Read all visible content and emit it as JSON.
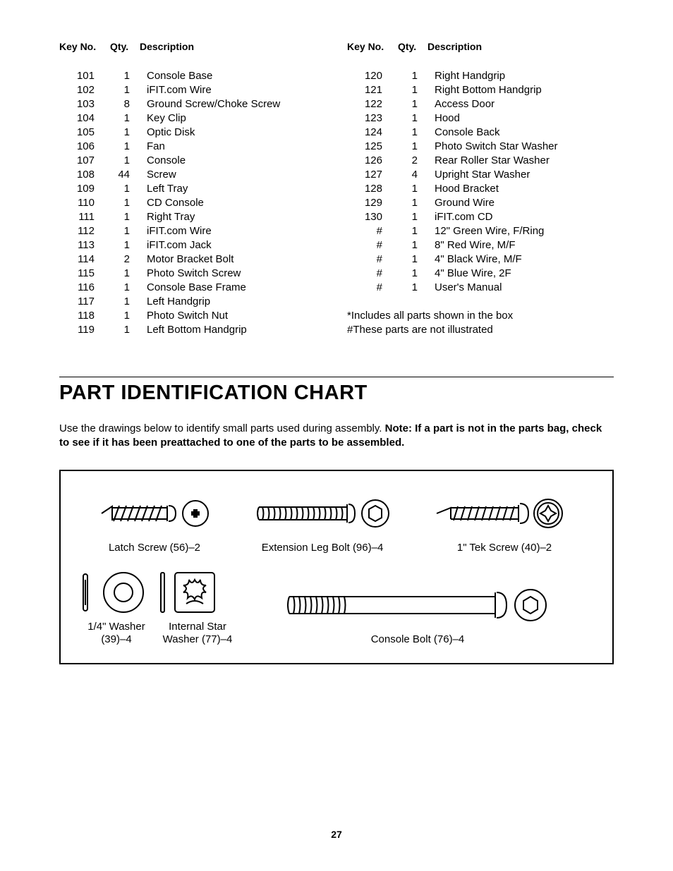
{
  "headers": {
    "key": "Key No.",
    "qty": "Qty.",
    "desc": "Description"
  },
  "left_parts": [
    {
      "key": "101",
      "qty": "1",
      "desc": "Console Base"
    },
    {
      "key": "102",
      "qty": "1",
      "desc": "iFIT.com Wire"
    },
    {
      "key": "103",
      "qty": "8",
      "desc": "Ground Screw/Choke Screw"
    },
    {
      "key": "104",
      "qty": "1",
      "desc": "Key Clip"
    },
    {
      "key": "105",
      "qty": "1",
      "desc": "Optic Disk"
    },
    {
      "key": "106",
      "qty": "1",
      "desc": "Fan"
    },
    {
      "key": "107",
      "qty": "1",
      "desc": "Console"
    },
    {
      "key": "108",
      "qty": "44",
      "desc": "Screw"
    },
    {
      "key": "109",
      "qty": "1",
      "desc": "Left Tray"
    },
    {
      "key": "110",
      "qty": "1",
      "desc": "CD Console"
    },
    {
      "key": "111",
      "qty": "1",
      "desc": "Right Tray"
    },
    {
      "key": "112",
      "qty": "1",
      "desc": "iFIT.com Wire"
    },
    {
      "key": "113",
      "qty": "1",
      "desc": "iFIT.com Jack"
    },
    {
      "key": "114",
      "qty": "2",
      "desc": "Motor Bracket Bolt"
    },
    {
      "key": "115",
      "qty": "1",
      "desc": "Photo Switch Screw"
    },
    {
      "key": "116",
      "qty": "1",
      "desc": "Console Base Frame"
    },
    {
      "key": "117",
      "qty": "1",
      "desc": "Left Handgrip"
    },
    {
      "key": "118",
      "qty": "1",
      "desc": "Photo Switch Nut"
    },
    {
      "key": "119",
      "qty": "1",
      "desc": "Left Bottom Handgrip"
    }
  ],
  "right_parts": [
    {
      "key": "120",
      "qty": "1",
      "desc": "Right Handgrip"
    },
    {
      "key": "121",
      "qty": "1",
      "desc": "Right Bottom Handgrip"
    },
    {
      "key": "122",
      "qty": "1",
      "desc": "Access Door"
    },
    {
      "key": "123",
      "qty": "1",
      "desc": "Hood"
    },
    {
      "key": "124",
      "qty": "1",
      "desc": "Console Back"
    },
    {
      "key": "125",
      "qty": "1",
      "desc": "Photo Switch Star Washer"
    },
    {
      "key": "126",
      "qty": "2",
      "desc": "Rear Roller Star Washer"
    },
    {
      "key": "127",
      "qty": "4",
      "desc": "Upright Star Washer"
    },
    {
      "key": "128",
      "qty": "1",
      "desc": "Hood Bracket"
    },
    {
      "key": "129",
      "qty": "1",
      "desc": "Ground Wire"
    },
    {
      "key": "130",
      "qty": "1",
      "desc": "iFIT.com CD"
    },
    {
      "key": "#",
      "qty": "1",
      "desc": "12\" Green Wire, F/Ring"
    },
    {
      "key": "#",
      "qty": "1",
      "desc": "8\" Red Wire, M/F"
    },
    {
      "key": "#",
      "qty": "1",
      "desc": "4\" Black Wire, M/F"
    },
    {
      "key": "#",
      "qty": "1",
      "desc": "4\" Blue Wire, 2F"
    },
    {
      "key": "#",
      "qty": "1",
      "desc": "User's Manual"
    }
  ],
  "notes": {
    "line1": "*Includes all parts shown in the box",
    "line2": "#These parts are not illustrated"
  },
  "title": "PART IDENTIFICATION CHART",
  "intro": {
    "plain": "Use the drawings below to identify small parts used during assembly. ",
    "bold": "Note: If a part is not in the parts bag, check to see if it has been preattached to one of the parts to be assembled."
  },
  "chart": {
    "latch_screw": "Latch Screw (56)–2",
    "ext_leg_bolt": "Extension Leg Bolt (96)–4",
    "tek_screw": "1\" Tek Screw (40)–2",
    "washer_1_4": "1/4\" Washer",
    "washer_1_4_sub": "(39)–4",
    "star_washer": "Internal Star",
    "star_washer_sub": "Washer (77)–4",
    "console_bolt": "Console Bolt (76)–4"
  },
  "page_number": "27"
}
